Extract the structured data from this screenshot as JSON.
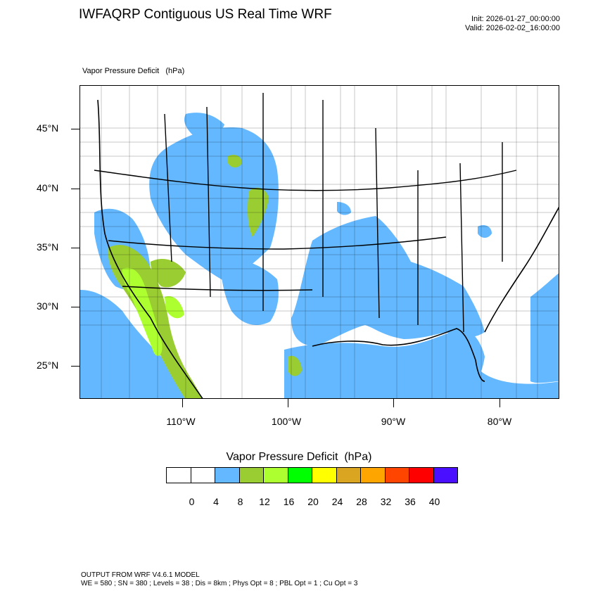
{
  "title": "IWFAQRP Contiguous US Real Time WRF",
  "init_label": "Init: 2026-01-27_00:00:00",
  "valid_label": "Valid: 2026-02-02_16:00:00",
  "field_label": "Vapor Pressure Deficit   (hPa)",
  "map": {
    "lat_labels": [
      "45°N",
      "40°N",
      "35°N",
      "30°N",
      "25°N"
    ],
    "lon_labels": [
      "110°W",
      "100°W",
      "90°W",
      "80°W"
    ]
  },
  "legend": {
    "title": "Vapor Pressure Deficit  (hPa)",
    "colors": [
      "#ffffff",
      "#ffffff",
      "#63b8ff",
      "#9acd32",
      "#adff2f",
      "#00ff00",
      "#ffff00",
      "#daa520",
      "#ffa500",
      "#ff4500",
      "#ff0000",
      "#4a0fff"
    ],
    "labels": [
      "0",
      "4",
      "8",
      "12",
      "16",
      "20",
      "24",
      "28",
      "32",
      "36",
      "40"
    ]
  },
  "footer": {
    "line1": "OUTPUT FROM WRF V4.6.1 MODEL",
    "line2": "WE = 580 ; SN = 380 ; Levels = 38 ; Dis = 8km ; Phys Opt = 8 ; PBL Opt = 1 ; Cu Opt = 3"
  }
}
